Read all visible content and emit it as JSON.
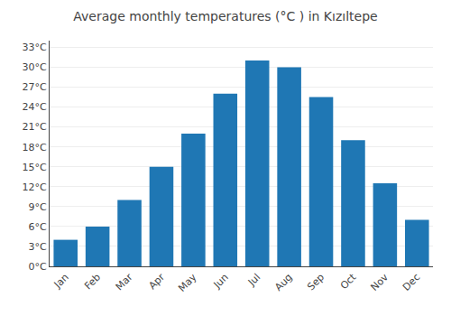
{
  "chart_data": {
    "type": "bar",
    "title": "Average monthly temperatures (°C ) in Kızıltepe",
    "categories": [
      "Jan",
      "Feb",
      "Mar",
      "Apr",
      "May",
      "Jun",
      "Jul",
      "Aug",
      "Sep",
      "Oct",
      "Nov",
      "Dec"
    ],
    "values": [
      4,
      6,
      10,
      15,
      20,
      26,
      31,
      30,
      25.5,
      19,
      12.5,
      7
    ],
    "ylim": [
      0,
      34
    ],
    "yticks": [
      {
        "value": 0,
        "label": "0°C"
      },
      {
        "value": 3,
        "label": "3°C"
      },
      {
        "value": 6,
        "label": "6°C"
      },
      {
        "value": 9,
        "label": "9°C"
      },
      {
        "value": 12,
        "label": "12°C"
      },
      {
        "value": 15,
        "label": "15°C"
      },
      {
        "value": 18,
        "label": "18°C"
      },
      {
        "value": 21,
        "label": "21°C"
      },
      {
        "value": 24,
        "label": "24°C"
      },
      {
        "value": 27,
        "label": "27°C"
      },
      {
        "value": 30,
        "label": "30°C"
      },
      {
        "value": 33,
        "label": "33°C"
      }
    ],
    "grid": true
  }
}
